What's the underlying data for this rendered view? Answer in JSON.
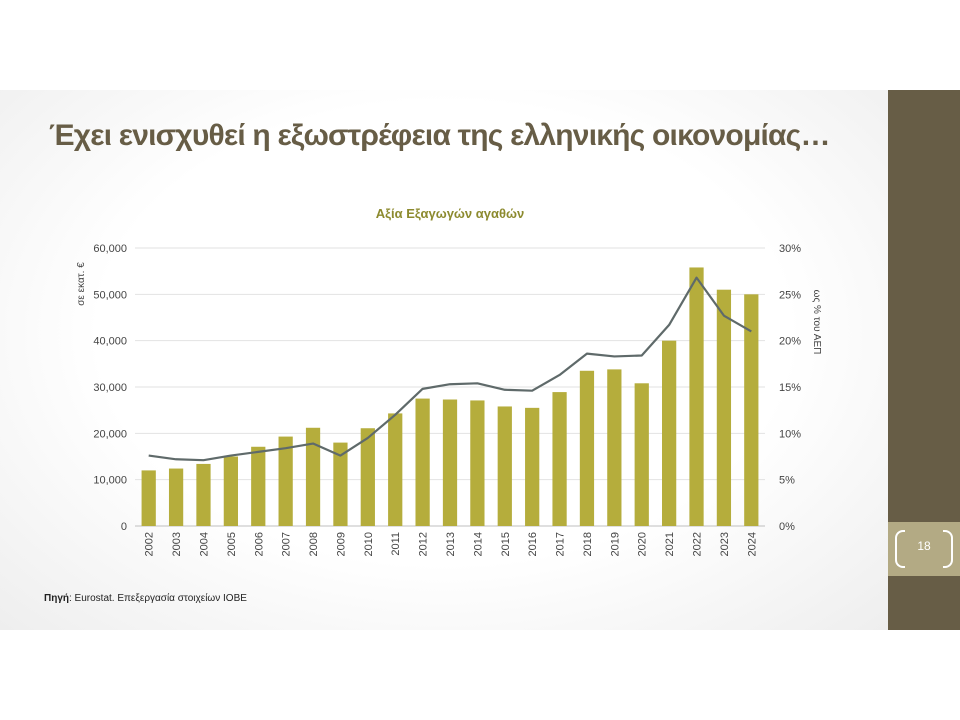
{
  "slide": {
    "title": "Έχει ενισχυθεί η εξωστρέφεια της ελληνικής οικονομίας…",
    "page_number": "18",
    "source_label": "Πηγή",
    "source_text": ": Eurostat. Επεξεργασία στοιχείων ΙΟΒΕ"
  },
  "colors": {
    "accent": "#675d46",
    "page_box": "#b3aa84",
    "bars": "#b5ad3c",
    "line": "#5f6a6a",
    "title": "#8c8a2e"
  },
  "chart_data": {
    "type": "bar",
    "title": "Αξία Εξαγωγών αγαθών",
    "ylabel": "σε εκατ. €",
    "y2label": "ως % του ΑΕΠ",
    "categories": [
      "2002",
      "2003",
      "2004",
      "2005",
      "2006",
      "2007",
      "2008",
      "2009",
      "2010",
      "2011",
      "2012",
      "2013",
      "2014",
      "2015",
      "2016",
      "2017",
      "2018",
      "2019",
      "2020",
      "2021",
      "2022",
      "2023",
      "2024"
    ],
    "series": [
      {
        "type": "bar",
        "axis": "left",
        "values": [
          12000,
          12400,
          13400,
          15000,
          17100,
          19300,
          21200,
          18000,
          21100,
          24300,
          27500,
          27300,
          27100,
          25800,
          25500,
          28900,
          33500,
          33800,
          30800,
          40000,
          55800,
          51000,
          50000
        ]
      },
      {
        "type": "line",
        "axis": "right",
        "values": [
          7.6,
          7.2,
          7.1,
          7.6,
          8.0,
          8.4,
          8.9,
          7.6,
          9.5,
          12.0,
          14.8,
          15.3,
          15.4,
          14.7,
          14.6,
          16.3,
          18.6,
          18.3,
          18.4,
          21.7,
          26.8,
          22.7,
          21.0
        ]
      }
    ],
    "ylim": [
      0,
      60000
    ],
    "y_ticks": [
      "0",
      "10,000",
      "20,000",
      "30,000",
      "40,000",
      "50,000",
      "60,000"
    ],
    "y2lim": [
      0,
      30
    ],
    "y2_ticks": [
      "0%",
      "5%",
      "10%",
      "15%",
      "20%",
      "25%",
      "30%"
    ],
    "grid": true,
    "legend": "none"
  }
}
